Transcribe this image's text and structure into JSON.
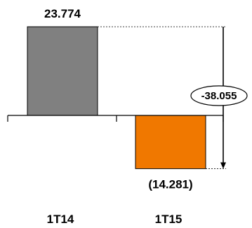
{
  "chart_data": {
    "type": "bar",
    "title": "",
    "xlabel": "",
    "ylabel": "",
    "categories": [
      "1T14",
      "1T15"
    ],
    "values": [
      23.774,
      -14.281
    ],
    "ylim": [
      -14.281,
      23.774
    ],
    "value_labels": [
      "23.774",
      "(14.281)"
    ],
    "bar_colors": [
      "#808080",
      "#F07800"
    ],
    "difference": {
      "value": -38.055,
      "label": "-38.055"
    },
    "grid": false,
    "legend": "none"
  }
}
